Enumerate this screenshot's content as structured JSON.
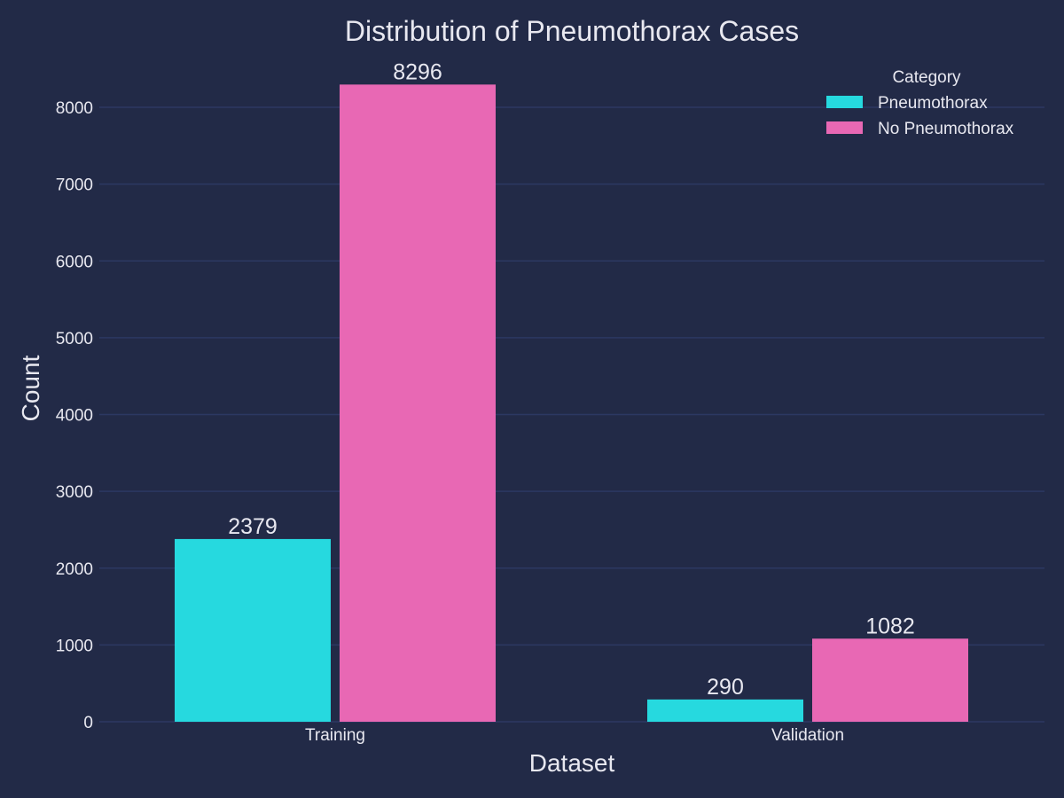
{
  "colors": {
    "background": "#222a47",
    "grid": "#2c3862",
    "text": "#e8e8f0"
  },
  "chart_data": {
    "type": "bar",
    "title": "Distribution of Pneumothorax Cases",
    "xlabel": "Dataset",
    "ylabel": "Count",
    "categories": [
      "Training",
      "Validation"
    ],
    "series": [
      {
        "name": "Pneumothorax",
        "values": [
          2379,
          290
        ],
        "color": "#26d9df"
      },
      {
        "name": "No Pneumothorax",
        "values": [
          8296,
          1082
        ],
        "color": "#e868b4"
      }
    ],
    "ylim": [
      0,
      8500
    ],
    "yticks": [
      0,
      1000,
      2000,
      3000,
      4000,
      5000,
      6000,
      7000,
      8000
    ],
    "grid": true,
    "show_data_labels": true,
    "legend": {
      "title": "Category",
      "position": "top-right"
    }
  }
}
